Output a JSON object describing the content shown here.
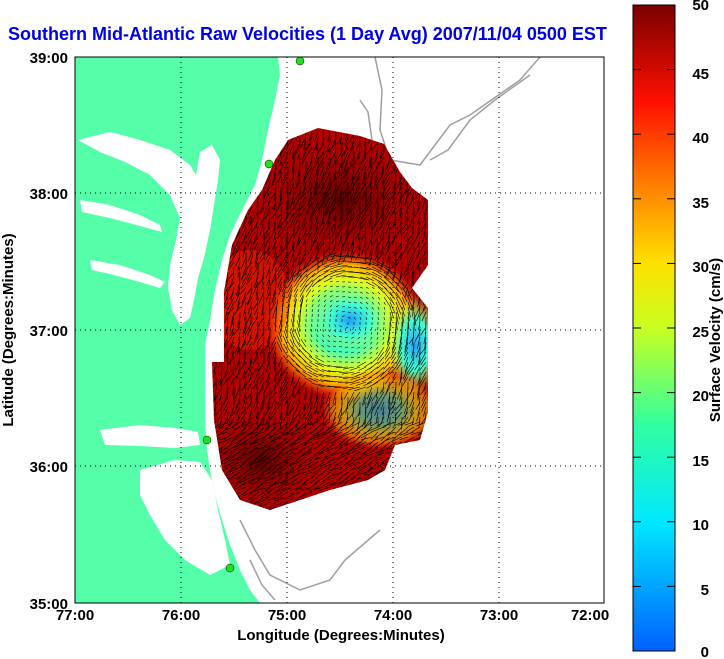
{
  "title": "Southern Mid-Atlantic Raw Velocities (1 Day Avg) 2007/11/04 0500 EST",
  "x_axis": {
    "label": "Longitude (Degrees:Minutes)",
    "ticks": [
      "77:00",
      "76:00",
      "75:00",
      "74:00",
      "73:00",
      "72:00"
    ]
  },
  "y_axis": {
    "label": "Latitude (Degrees:Minutes)",
    "ticks": [
      "39:00",
      "38:00",
      "37:00",
      "36:00",
      "35:00"
    ]
  },
  "colorbar": {
    "label": "Surface Velocity (cm/s)",
    "ticks": [
      "50",
      "45",
      "40",
      "35",
      "30",
      "25",
      "20",
      "15",
      "10",
      "5",
      "0"
    ],
    "range": [
      0,
      50
    ]
  },
  "colors": {
    "land": "#55ffaa",
    "ocean": "#ffffff",
    "title": "#0000e6",
    "bathymetry": "#a0a0a0",
    "station": "#22dd22"
  }
}
